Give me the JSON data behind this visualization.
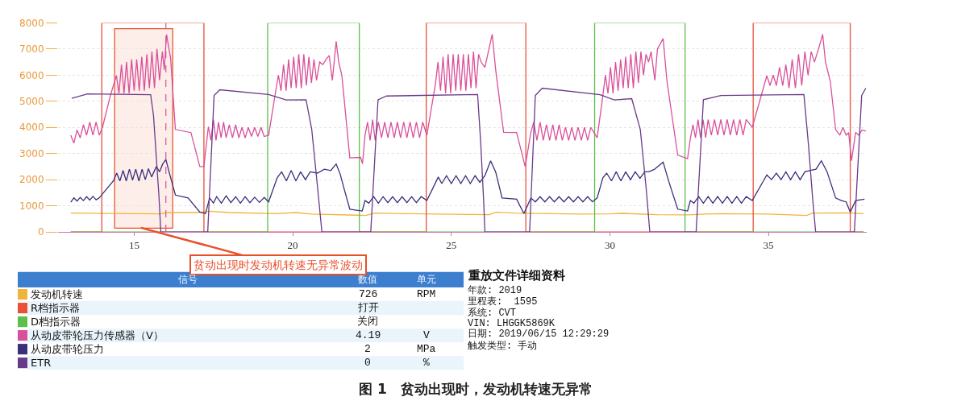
{
  "chart_data": {
    "type": "line",
    "title": "图 1　贫动出现时，发动机转速无异常",
    "xlim": [
      12.6,
      38.1
    ],
    "xticks": [
      15,
      20,
      25,
      30,
      35
    ],
    "ylim": [
      0,
      8000
    ],
    "yticks": [
      0,
      1000,
      2000,
      3000,
      4000,
      5000,
      6000,
      7000,
      8000
    ],
    "grid": "y",
    "legend": "bottom",
    "series": [
      {
        "name": "发动机转速",
        "color": "#f0b43c",
        "x": [
          13.0,
          15.0,
          15.8,
          16.1,
          17.0,
          17.4,
          18.0,
          19.5,
          20.1,
          20.6,
          22.0,
          22.3,
          22.6,
          23.5,
          24.5,
          26.2,
          26.4,
          27.0,
          29.0,
          30.0,
          30.4,
          31.5,
          32.5,
          33.0,
          33.5,
          35.0,
          36.2,
          36.4,
          37.5,
          38.0
        ],
        "values": [
          720,
          700,
          690,
          740,
          740,
          790,
          740,
          700,
          740,
          680,
          640,
          630,
          720,
          700,
          680,
          660,
          750,
          720,
          680,
          690,
          710,
          660,
          650,
          680,
          700,
          680,
          630,
          720,
          730,
          700
        ]
      },
      {
        "name": "R档指示器",
        "color": "#e8503a",
        "x": [
          13.0,
          13.98,
          13.98,
          17.2,
          17.2,
          24.21,
          24.21,
          27.35,
          27.35,
          34.52,
          34.52,
          37.58,
          37.58,
          38.0
        ],
        "values": [
          0,
          0,
          8000,
          8000,
          0,
          0,
          8000,
          8000,
          0,
          0,
          8000,
          8000,
          0,
          0
        ]
      },
      {
        "name": "D档指示器",
        "color": "#5cc04a",
        "x": [
          13.0,
          19.21,
          19.21,
          22.1,
          22.1,
          29.52,
          29.52,
          32.37,
          32.37,
          38.0
        ],
        "values": [
          0,
          0,
          8000,
          8000,
          0,
          0,
          8000,
          8000,
          0,
          0
        ]
      },
      {
        "name": "从动皮带轮压力传感器（V）",
        "color": "#d9509a",
        "x": [
          13.0,
          13.1,
          13.2,
          13.3,
          13.4,
          13.5,
          13.6,
          13.7,
          13.8,
          13.9,
          14.0,
          14.25,
          14.44,
          14.52,
          14.6,
          14.68,
          14.76,
          14.84,
          14.92,
          15.0,
          15.08,
          15.16,
          15.24,
          15.32,
          15.4,
          15.48,
          15.56,
          15.64,
          15.72,
          15.8,
          15.89,
          15.95,
          16.02,
          16.15,
          16.3,
          16.79,
          17.07,
          17.2,
          17.34,
          17.42,
          17.5,
          17.58,
          17.66,
          17.74,
          17.82,
          17.9,
          18.0,
          18.1,
          18.2,
          18.3,
          18.4,
          18.5,
          18.6,
          18.7,
          18.8,
          18.9,
          19.0,
          19.1,
          19.24,
          19.47,
          19.55,
          19.63,
          19.71,
          19.79,
          19.87,
          19.95,
          20.03,
          20.11,
          20.19,
          20.27,
          20.35,
          20.43,
          20.51,
          20.59,
          20.67,
          20.75,
          20.85,
          20.95,
          21.05,
          21.15,
          21.25,
          21.37,
          21.45,
          21.55,
          21.8,
          22.14,
          22.2,
          22.28,
          22.36,
          22.44,
          22.52,
          22.6,
          22.7,
          22.8,
          22.9,
          23.0,
          23.1,
          23.2,
          23.3,
          23.4,
          23.5,
          23.6,
          23.7,
          23.8,
          23.9,
          24.0,
          24.1,
          24.23,
          24.5,
          24.58,
          24.66,
          24.74,
          24.82,
          24.9,
          24.98,
          25.06,
          25.14,
          25.22,
          25.3,
          25.38,
          25.46,
          25.54,
          25.62,
          25.7,
          25.78,
          25.86,
          25.94,
          26.06,
          26.15,
          26.29,
          26.4,
          26.65,
          27.06,
          27.33,
          27.51,
          27.6,
          27.7,
          27.8,
          27.9,
          28.0,
          28.1,
          28.2,
          28.3,
          28.4,
          28.5,
          28.6,
          28.7,
          28.8,
          28.9,
          29.0,
          29.1,
          29.2,
          29.3,
          29.4,
          29.6,
          29.78,
          29.86,
          29.94,
          30.02,
          30.1,
          30.18,
          30.26,
          30.34,
          30.42,
          30.5,
          30.58,
          30.66,
          30.74,
          30.82,
          30.9,
          30.98,
          31.06,
          31.14,
          31.22,
          31.3,
          31.42,
          31.5,
          31.68,
          31.8,
          32.14,
          32.45,
          32.54,
          32.62,
          32.7,
          32.78,
          32.86,
          32.94,
          33.02,
          33.1,
          33.2,
          33.3,
          33.4,
          33.5,
          33.6,
          33.7,
          33.8,
          33.9,
          34.0,
          34.1,
          34.2,
          34.3,
          34.49,
          34.95,
          35.05,
          35.15,
          35.25,
          35.35,
          35.45,
          35.55,
          35.65,
          35.75,
          35.85,
          35.95,
          36.05,
          36.15,
          36.25,
          36.35,
          36.45,
          36.58,
          36.71,
          36.8,
          36.95,
          37.12,
          37.25,
          37.35,
          37.45,
          37.53,
          37.62,
          37.75,
          37.85,
          37.95,
          38.07
        ],
        "values": [
          3700,
          3400,
          3900,
          3600,
          4100,
          3700,
          4200,
          3700,
          4200,
          3700,
          4000,
          5220,
          5980,
          5300,
          6400,
          5300,
          6500,
          5300,
          6600,
          5400,
          6600,
          5400,
          6700,
          5400,
          6800,
          5500,
          6900,
          5500,
          7000,
          5800,
          6900,
          6200,
          7560,
          6640,
          3920,
          3800,
          2500,
          2500,
          4030,
          3500,
          4300,
          3500,
          4200,
          3600,
          4200,
          3600,
          4100,
          3600,
          4100,
          3600,
          4000,
          3600,
          4000,
          3650,
          4000,
          3650,
          4000,
          3650,
          3700,
          5440,
          6000,
          5400,
          6400,
          5400,
          6600,
          5500,
          6700,
          5500,
          6800,
          5500,
          6800,
          5600,
          6700,
          5700,
          6600,
          5800,
          6500,
          6400,
          6600,
          6750,
          5800,
          7290,
          6500,
          5980,
          2830,
          2850,
          2610,
          3700,
          4200,
          3500,
          4300,
          3500,
          4200,
          3600,
          4200,
          3600,
          4200,
          3600,
          4200,
          3600,
          4200,
          3600,
          4200,
          3600,
          4200,
          3600,
          4200,
          3700,
          5660,
          6500,
          5400,
          6700,
          5300,
          6800,
          5300,
          6800,
          5400,
          6800,
          5400,
          6800,
          5400,
          6800,
          5500,
          6900,
          5500,
          6800,
          6500,
          6300,
          6800,
          7560,
          6200,
          3810,
          3800,
          2500,
          3810,
          4200,
          3500,
          4200,
          3500,
          4100,
          3500,
          4100,
          3500,
          4100,
          3500,
          4000,
          3500,
          4000,
          3500,
          4000,
          3500,
          4000,
          3500,
          4000,
          3600,
          5220,
          6000,
          5300,
          6300,
          5300,
          6500,
          5400,
          6600,
          5500,
          6700,
          5500,
          6800,
          5500,
          6900,
          5700,
          6900,
          6000,
          6800,
          6500,
          6900,
          5800,
          7000,
          7400,
          5770,
          2940,
          2800,
          3590,
          4100,
          3600,
          4300,
          3600,
          4300,
          3600,
          4300,
          3700,
          4300,
          3700,
          4300,
          3700,
          4300,
          3700,
          4300,
          3700,
          4300,
          3700,
          4300,
          4000,
          5980,
          5600,
          6000,
          5600,
          6300,
          5600,
          6400,
          5500,
          6600,
          5500,
          6800,
          5600,
          6900,
          6000,
          6900,
          6500,
          7000,
          7560,
          6500,
          5770,
          3920,
          3700,
          4000,
          3700,
          3800,
          2720,
          3810,
          3700,
          3900,
          3860
        ]
      },
      {
        "name": "从动皮带轮压力",
        "color": "#3a2f7a",
        "x": [
          13.0,
          13.1,
          13.2,
          13.3,
          13.4,
          13.5,
          13.6,
          13.7,
          13.8,
          13.9,
          14.1,
          14.35,
          14.45,
          14.55,
          14.65,
          14.75,
          14.85,
          14.95,
          15.05,
          15.15,
          15.25,
          15.35,
          15.45,
          15.55,
          15.7,
          15.8,
          15.9,
          16.0,
          16.1,
          16.3,
          16.7,
          17.07,
          17.25,
          17.38,
          17.5,
          17.6,
          17.75,
          17.9,
          18.05,
          18.2,
          18.35,
          18.5,
          18.65,
          18.8,
          18.95,
          19.1,
          19.24,
          19.51,
          19.65,
          19.8,
          19.95,
          20.1,
          20.25,
          20.4,
          20.55,
          20.78,
          21.0,
          21.2,
          21.37,
          21.5,
          21.6,
          21.8,
          22.19,
          22.28,
          22.4,
          22.55,
          22.7,
          22.85,
          23.0,
          23.15,
          23.3,
          23.45,
          23.6,
          23.75,
          23.9,
          24.05,
          24.23,
          24.59,
          24.7,
          24.85,
          25.0,
          25.15,
          25.3,
          25.45,
          25.6,
          25.75,
          25.9,
          26.06,
          26.24,
          26.4,
          26.6,
          27.06,
          27.29,
          27.51,
          27.65,
          27.8,
          27.95,
          28.1,
          28.25,
          28.4,
          28.55,
          28.7,
          28.85,
          29.0,
          29.15,
          29.3,
          29.45,
          29.6,
          29.78,
          29.9,
          30.05,
          30.2,
          30.35,
          30.5,
          30.65,
          30.8,
          30.95,
          31.1,
          31.23,
          31.4,
          31.68,
          31.85,
          32.14,
          32.45,
          32.54,
          32.65,
          32.8,
          32.95,
          33.1,
          33.25,
          33.4,
          33.55,
          33.7,
          33.85,
          34.0,
          34.15,
          34.3,
          34.49,
          34.95,
          35.1,
          35.25,
          35.4,
          35.55,
          35.7,
          35.85,
          36.0,
          36.15,
          36.3,
          36.5,
          36.67,
          36.85,
          37.12,
          37.3,
          37.45,
          37.58,
          37.75,
          38.03
        ],
        "values": [
          1140,
          1300,
          1180,
          1320,
          1200,
          1350,
          1220,
          1360,
          1230,
          1300,
          1600,
          1960,
          2250,
          1950,
          2350,
          1950,
          2400,
          1980,
          2400,
          1950,
          2400,
          2000,
          2420,
          2100,
          2500,
          2300,
          2600,
          2770,
          2300,
          1410,
          1300,
          760,
          700,
          1300,
          1100,
          1350,
          1100,
          1380,
          1120,
          1350,
          1100,
          1350,
          1120,
          1330,
          1130,
          1320,
          1150,
          2070,
          2300,
          1950,
          2350,
          1950,
          2300,
          2000,
          2300,
          2250,
          2400,
          2350,
          2600,
          2200,
          1740,
          870,
          800,
          1200,
          1100,
          1350,
          1100,
          1350,
          1120,
          1350,
          1120,
          1350,
          1120,
          1350,
          1120,
          1350,
          1200,
          2100,
          1850,
          2150,
          1850,
          2150,
          1850,
          2150,
          1850,
          2150,
          1900,
          2150,
          2720,
          2290,
          1300,
          1250,
          700,
          1300,
          1150,
          1350,
          1150,
          1350,
          1150,
          1350,
          1150,
          1350,
          1150,
          1350,
          1150,
          1350,
          1150,
          1300,
          2070,
          2250,
          1950,
          2300,
          1950,
          2300,
          2000,
          2300,
          2050,
          2300,
          2300,
          2390,
          2670,
          1960,
          870,
          800,
          1200,
          1100,
          1350,
          1100,
          1350,
          1100,
          1350,
          1100,
          1350,
          1100,
          1350,
          1100,
          1350,
          1200,
          2180,
          2000,
          2250,
          2000,
          2300,
          2000,
          2300,
          2000,
          2300,
          2350,
          2400,
          2720,
          2300,
          1300,
          1200,
          1150,
          760,
          1200,
          1250
        ]
      },
      {
        "name": "ETR",
        "color": "#6a3a8a",
        "x": [
          13.03,
          13.53,
          15.52,
          15.61,
          15.7,
          15.78,
          15.84,
          17.32,
          17.52,
          17.7,
          19.24,
          19.79,
          20.42,
          20.6,
          20.78,
          20.92,
          22.46,
          22.69,
          22.96,
          25.83,
          25.93,
          26.02,
          26.06,
          27.47,
          27.65,
          27.87,
          29.69,
          30.14,
          30.69,
          30.96,
          31.14,
          31.26,
          32.72,
          32.95,
          33.5,
          36.12,
          36.26,
          36.4,
          36.49,
          37.71,
          37.94,
          38.07
        ],
        "values": [
          5110,
          5280,
          5250,
          4460,
          2830,
          1410,
          0,
          0,
          5220,
          5440,
          5260,
          5050,
          5060,
          3920,
          1740,
          0,
          0,
          5060,
          5200,
          5260,
          3370,
          1200,
          0,
          0,
          5220,
          5500,
          5250,
          5050,
          5100,
          3920,
          1740,
          0,
          0,
          5060,
          5220,
          5260,
          3370,
          1200,
          0,
          0,
          5220,
          5500
        ]
      }
    ],
    "ref_lines": [
      {
        "axis": "x",
        "value": 16.0,
        "color": "#d9509a",
        "line_style": "dashed"
      }
    ],
    "bands": [
      {
        "axis": "x",
        "from": 14.4,
        "to": 16.2,
        "color": "#e8502a",
        "label": "贫动出现时发动机转速无异常波动"
      }
    ],
    "annotations": [
      "信号",
      "数值",
      "单元",
      "726",
      "RPM",
      "打开",
      null,
      "关闭",
      null,
      "4.19",
      "V",
      "2",
      "MPa",
      "0",
      "%",
      "重放文件详细资料",
      "年款: 2019",
      "里程表:  1595",
      "系统: CVT",
      "VIN: LHGGK5869K",
      "日期: 2019/06/15 12:29:29",
      "触发类型: 手动"
    ]
  }
}
